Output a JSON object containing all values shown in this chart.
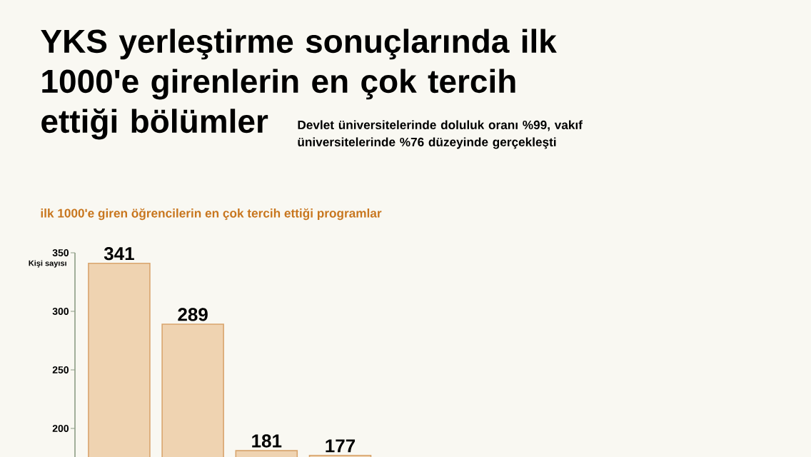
{
  "chart_data": {
    "type": "bar",
    "title": "YKS yerleştirme sonuçlarında ilk 1000'e girenlerin en çok tercih ettiği bölümler",
    "subtitle": "ilk 1000'e giren öğrencilerin en çok tercih ettiği programlar",
    "annotations": [
      "Devlet üniversitelerinde doluluk oranı %99, vakıf üniversitelerinde %76 düzeyinde gerçekleşti"
    ],
    "ylabel": "Kişi sayısı",
    "categories": [
      null,
      null,
      null,
      null
    ],
    "values": [
      341,
      289,
      181,
      177
    ],
    "color": "#efd3b1",
    "data_labels": true,
    "ylim": [
      0,
      350
    ],
    "yticks": [
      200,
      250,
      300,
      350
    ]
  }
}
